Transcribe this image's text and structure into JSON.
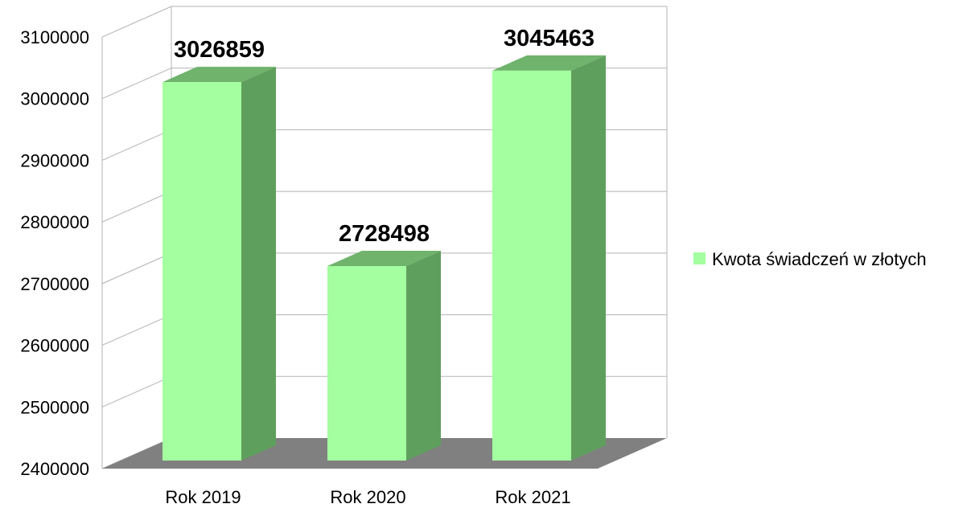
{
  "chart_data": {
    "type": "bar",
    "categories": [
      "Rok 2019",
      "Rok 2020",
      "Rok 2021"
    ],
    "series": [
      {
        "name": "Kwota świadczeń w złotych",
        "values": [
          3026859,
          2728498,
          3045463
        ]
      }
    ],
    "y_ticks": [
      "2400000",
      "2500000",
      "2600000",
      "2700000",
      "2800000",
      "2900000",
      "3000000",
      "3100000"
    ],
    "ylim": [
      2400000,
      3100000
    ],
    "grid": true,
    "legend_position": "right",
    "colors": {
      "bar_front": "#a3ff9f",
      "bar_side": "#5f9f5d",
      "bar_top": "#6fb36c",
      "floor": "#808080",
      "grid": "#b3b3b3"
    }
  }
}
